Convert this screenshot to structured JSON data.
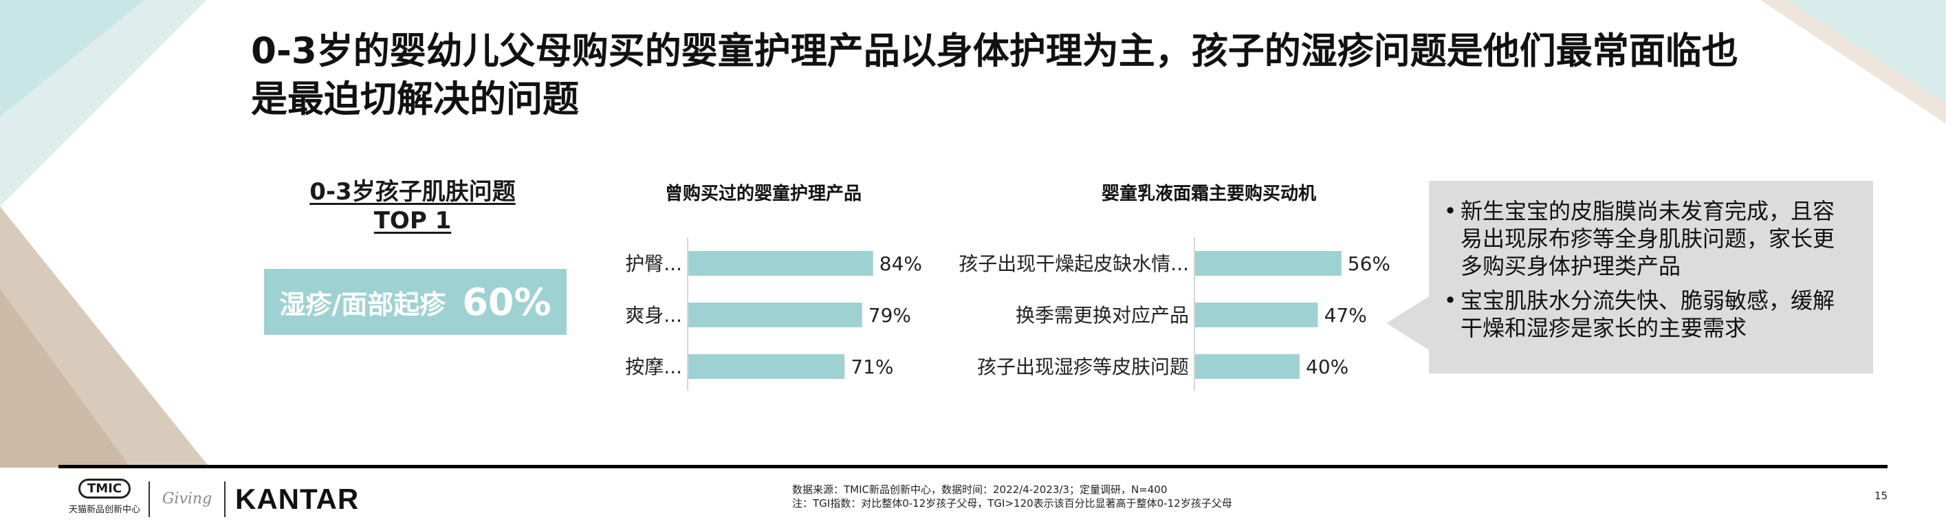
{
  "title": "0-3岁的婴幼儿父母购买的婴童护理产品以身体护理为主，孩子的湿疹问题是他们最常面临也是最迫切解决的问题",
  "skin_issue": {
    "heading_line1": "0-3岁孩子肌肤问题",
    "heading_line2": "TOP 1",
    "label": "湿疹/面部起疹",
    "value": "60%"
  },
  "chart_data": [
    {
      "type": "bar",
      "orientation": "horizontal",
      "title": "曾购买过的婴童护理产品",
      "categories": [
        "护臀...",
        "爽身...",
        "按摩..."
      ],
      "values": [
        84,
        79,
        71
      ],
      "value_labels": [
        "84%",
        "79%",
        "71%"
      ],
      "xlim": [
        0,
        100
      ],
      "color": "#9ed2d2"
    },
    {
      "type": "bar",
      "orientation": "horizontal",
      "title": "婴童乳液面霜主要购买动机",
      "categories": [
        "孩子出现干燥起皮缺水情...",
        "换季需更换对应产品",
        "孩子出现湿疹等皮肤问题"
      ],
      "values": [
        56,
        47,
        40
      ],
      "value_labels": [
        "56%",
        "47%",
        "40%"
      ],
      "xlim": [
        0,
        100
      ],
      "color": "#9ed2d2"
    }
  ],
  "insights": [
    "新生宝宝的皮脂膜尚未发育完成，且容易出现尿布疹等全身肌肤问题，家长更多购买身体护理类产品",
    "宝宝肌肤水分流失快、脆弱敏感，缓解干燥和湿疹是家长的主要需求"
  ],
  "bullet": "•",
  "footer": {
    "tmic_mark": "TMIC",
    "tmic_caption": "天猫新品创新中心",
    "giving_logo": "Giving",
    "kantar_logo": "KANTAR",
    "source_line1": "数据来源：TMIC新品创新中心，数据时间：2022/4-2023/3；定量调研，N=400",
    "source_line2": "注：TGI指数：对比整体0-12岁孩子父母，TGI>120表示该百分比显著高于整体0-12岁孩子父母",
    "page_number": "15"
  },
  "colors": {
    "bar": "#9ed2d2",
    "accent_box": "#9ed2d2",
    "bubble": "#dcdcdc"
  }
}
